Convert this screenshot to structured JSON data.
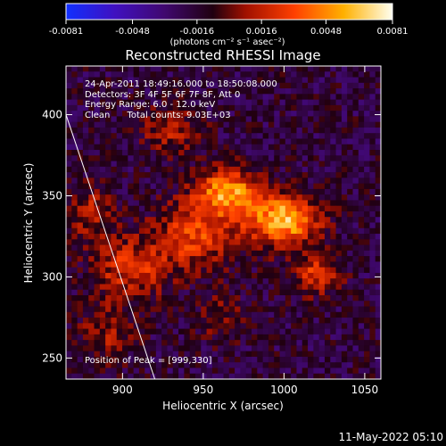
{
  "chart_data": {
    "type": "heatmap",
    "title": "Reconstructed RHESSI Image",
    "xlabel": "Heliocentric X (arcsec)",
    "ylabel": "Heliocentric Y (arcsec)",
    "xlim": [
      865,
      1060
    ],
    "ylim": [
      237,
      430
    ],
    "x_ticks": [
      900,
      950,
      1000,
      1050
    ],
    "y_ticks": [
      250,
      300,
      350,
      400
    ],
    "colorbar": {
      "min": -0.0081,
      "max": 0.0081,
      "ticks": [
        "-0.0081",
        "-0.0048",
        "-0.0016",
        "0.0016",
        "0.0048",
        "0.0081"
      ],
      "units": "(photons cm⁻² s⁻¹ asec⁻²)"
    },
    "annotations": {
      "time": "24-Apr-2011 18:49:16.000 to 18:50:08.000",
      "detectors": "Detectors: 3F 4F 5F 6F 7F 8F, Att 0",
      "energy": "Energy Range: 6.0 - 12.0 keV",
      "clean": "Clean      Total counts: 9.03E+03",
      "peak": "Position of Peak = [999,330]"
    },
    "peak": [
      999,
      330
    ],
    "limb_line": [
      [
        865,
        400
      ],
      [
        920,
        237
      ]
    ],
    "sources": [
      {
        "x": 965,
        "y": 352,
        "sx": 14,
        "sy": 10,
        "amp": 0.007
      },
      {
        "x": 1000,
        "y": 335,
        "sx": 15,
        "sy": 11,
        "amp": 0.008
      },
      {
        "x": 945,
        "y": 325,
        "sx": 18,
        "sy": 14,
        "amp": 0.0045
      },
      {
        "x": 905,
        "y": 305,
        "sx": 16,
        "sy": 13,
        "amp": 0.004
      },
      {
        "x": 880,
        "y": 340,
        "sx": 10,
        "sy": 12,
        "amp": 0.003
      },
      {
        "x": 930,
        "y": 390,
        "sx": 13,
        "sy": 10,
        "amp": 0.003
      },
      {
        "x": 1020,
        "y": 302,
        "sx": 10,
        "sy": 9,
        "amp": 0.004
      },
      {
        "x": 890,
        "y": 265,
        "sx": 12,
        "sy": 12,
        "amp": 0.0025
      },
      {
        "x": 960,
        "y": 275,
        "sx": 10,
        "sy": 10,
        "amp": 0.002
      }
    ],
    "background": -0.0018,
    "noise_amp": 0.0016
  },
  "timestamp": "11-May-2022 05:10"
}
